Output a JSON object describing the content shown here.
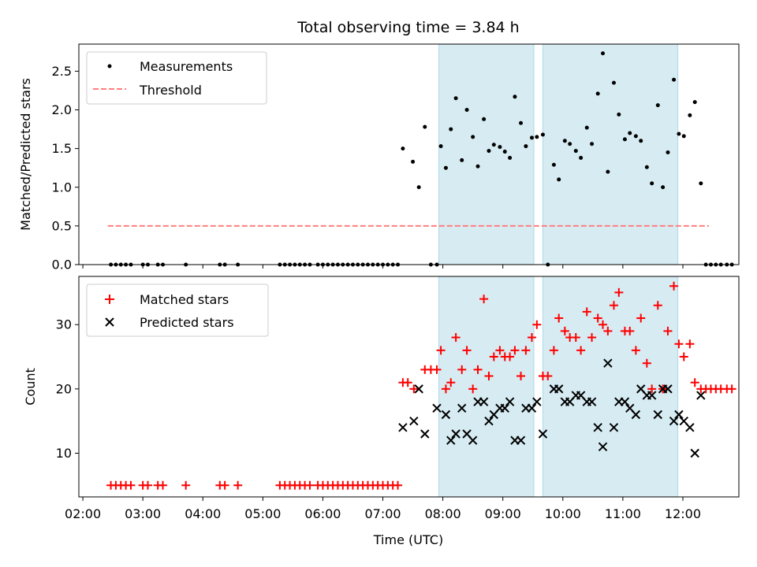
{
  "figure": {
    "title": "Total observing time = 3.84 h"
  },
  "colors": {
    "span": "#add8e6",
    "threshold": "#ff7f7f",
    "measurement": "#000000",
    "matched": "#ff0000",
    "predicted": "#000000"
  },
  "chart_data": [
    {
      "type": "scatter",
      "title": "Total observing time = 3.84 h",
      "xlabel": "",
      "ylabel": "Matched/Predicted stars",
      "xlim": [
        "01:56",
        "12:56"
      ],
      "ylim": [
        0,
        2.85
      ],
      "yticks": [
        0.0,
        0.5,
        1.0,
        1.5,
        2.0,
        2.5
      ],
      "ytick_labels": [
        "0.0",
        "0.5",
        "1.0",
        "1.5",
        "2.0",
        "2.5"
      ],
      "xticks": [
        "02:00",
        "03:00",
        "04:00",
        "05:00",
        "06:00",
        "07:00",
        "08:00",
        "09:00",
        "10:00",
        "11:00",
        "12:00"
      ],
      "legend_position": "upper left",
      "legend": [
        "Measurements",
        "Threshold"
      ],
      "shaded_spans": [
        [
          "07:56",
          "09:31"
        ],
        [
          "09:40",
          "11:55"
        ]
      ],
      "series": [
        {
          "name": "Measurements",
          "marker": "dot",
          "points": [
            [
              "02:28",
              0
            ],
            [
              "02:33",
              0
            ],
            [
              "02:38",
              0
            ],
            [
              "02:43",
              0
            ],
            [
              "02:48",
              0
            ],
            [
              "03:00",
              0
            ],
            [
              "03:05",
              0
            ],
            [
              "03:15",
              0
            ],
            [
              "03:20",
              0
            ],
            [
              "03:43",
              0
            ],
            [
              "04:17",
              0
            ],
            [
              "04:22",
              0
            ],
            [
              "04:35",
              0
            ],
            [
              "05:17",
              0
            ],
            [
              "05:22",
              0
            ],
            [
              "05:27",
              0
            ],
            [
              "05:32",
              0
            ],
            [
              "05:37",
              0
            ],
            [
              "05:42",
              0
            ],
            [
              "05:47",
              0
            ],
            [
              "05:55",
              0
            ],
            [
              "06:00",
              0
            ],
            [
              "06:05",
              0
            ],
            [
              "06:10",
              0
            ],
            [
              "06:15",
              0
            ],
            [
              "06:20",
              0
            ],
            [
              "06:25",
              0
            ],
            [
              "06:30",
              0
            ],
            [
              "06:35",
              0
            ],
            [
              "06:40",
              0
            ],
            [
              "06:45",
              0
            ],
            [
              "06:50",
              0
            ],
            [
              "06:55",
              0
            ],
            [
              "07:00",
              0
            ],
            [
              "07:05",
              0
            ],
            [
              "07:10",
              0
            ],
            [
              "07:15",
              0
            ],
            [
              "07:20",
              1.5
            ],
            [
              "07:30",
              1.33
            ],
            [
              "07:36",
              1.0
            ],
            [
              "07:42",
              1.78
            ],
            [
              "07:48",
              0
            ],
            [
              "07:54",
              0
            ],
            [
              "07:58",
              1.53
            ],
            [
              "08:03",
              1.25
            ],
            [
              "08:08",
              1.75
            ],
            [
              "08:13",
              2.15
            ],
            [
              "08:19",
              1.35
            ],
            [
              "08:24",
              2.0
            ],
            [
              "08:30",
              1.65
            ],
            [
              "08:35",
              1.27
            ],
            [
              "08:41",
              1.88
            ],
            [
              "08:46",
              1.47
            ],
            [
              "08:51",
              1.55
            ],
            [
              "08:57",
              1.52
            ],
            [
              "09:02",
              1.46
            ],
            [
              "09:07",
              1.38
            ],
            [
              "09:12",
              2.17
            ],
            [
              "09:18",
              1.83
            ],
            [
              "09:23",
              1.53
            ],
            [
              "09:29",
              1.64
            ],
            [
              "09:34",
              1.65
            ],
            [
              "09:40",
              1.68
            ],
            [
              "09:45",
              0
            ],
            [
              "09:51",
              1.29
            ],
            [
              "09:56",
              1.1
            ],
            [
              "10:02",
              1.6
            ],
            [
              "10:07",
              1.56
            ],
            [
              "10:13",
              1.47
            ],
            [
              "10:18",
              1.38
            ],
            [
              "10:24",
              1.77
            ],
            [
              "10:29",
              1.56
            ],
            [
              "10:35",
              2.21
            ],
            [
              "10:40",
              2.73
            ],
            [
              "10:45",
              1.2
            ],
            [
              "10:51",
              2.35
            ],
            [
              "10:56",
              1.94
            ],
            [
              "11:02",
              1.62
            ],
            [
              "11:07",
              1.7
            ],
            [
              "11:13",
              1.66
            ],
            [
              "11:18",
              1.6
            ],
            [
              "11:24",
              1.26
            ],
            [
              "11:29",
              1.05
            ],
            [
              "11:35",
              2.06
            ],
            [
              "11:40",
              1.0
            ],
            [
              "11:45",
              1.45
            ],
            [
              "11:51",
              2.39
            ],
            [
              "11:56",
              1.69
            ],
            [
              "12:01",
              1.66
            ],
            [
              "12:07",
              1.93
            ],
            [
              "12:12",
              2.1
            ],
            [
              "12:18",
              1.05
            ],
            [
              "12:23",
              0
            ],
            [
              "12:28",
              0
            ],
            [
              "12:33",
              0
            ],
            [
              "12:38",
              0
            ],
            [
              "12:44",
              0
            ],
            [
              "12:49",
              0
            ]
          ]
        },
        {
          "name": "Threshold",
          "style": "dashed",
          "y": 0.5,
          "x_range": [
            "02:25",
            "12:26"
          ]
        }
      ]
    },
    {
      "type": "scatter",
      "xlabel": "Time (UTC)",
      "ylabel": "Count",
      "xlim": [
        "01:56",
        "12:56"
      ],
      "ylim": [
        3.2,
        37.5
      ],
      "yticks": [
        10,
        20,
        30
      ],
      "ytick_labels": [
        "10",
        "20",
        "30"
      ],
      "xticks": [
        "02:00",
        "03:00",
        "04:00",
        "05:00",
        "06:00",
        "07:00",
        "08:00",
        "09:00",
        "10:00",
        "11:00",
        "12:00"
      ],
      "xtick_labels": [
        "02:00",
        "03:00",
        "04:00",
        "05:00",
        "06:00",
        "07:00",
        "08:00",
        "09:00",
        "10:00",
        "11:00",
        "12:00"
      ],
      "legend_position": "upper left",
      "legend": [
        "Matched stars",
        "Predicted stars"
      ],
      "shaded_spans": [
        [
          "07:56",
          "09:31"
        ],
        [
          "09:40",
          "11:55"
        ]
      ],
      "series": [
        {
          "name": "Matched stars",
          "marker": "plus",
          "points": [
            [
              "02:28",
              5
            ],
            [
              "02:33",
              5
            ],
            [
              "02:38",
              5
            ],
            [
              "02:43",
              5
            ],
            [
              "02:48",
              5
            ],
            [
              "03:00",
              5
            ],
            [
              "03:05",
              5
            ],
            [
              "03:15",
              5
            ],
            [
              "03:20",
              5
            ],
            [
              "03:43",
              5
            ],
            [
              "04:17",
              5
            ],
            [
              "04:22",
              5
            ],
            [
              "04:35",
              5
            ],
            [
              "05:17",
              5
            ],
            [
              "05:22",
              5
            ],
            [
              "05:27",
              5
            ],
            [
              "05:32",
              5
            ],
            [
              "05:37",
              5
            ],
            [
              "05:42",
              5
            ],
            [
              "05:47",
              5
            ],
            [
              "05:55",
              5
            ],
            [
              "06:00",
              5
            ],
            [
              "06:05",
              5
            ],
            [
              "06:10",
              5
            ],
            [
              "06:15",
              5
            ],
            [
              "06:20",
              5
            ],
            [
              "06:25",
              5
            ],
            [
              "06:30",
              5
            ],
            [
              "06:35",
              5
            ],
            [
              "06:40",
              5
            ],
            [
              "06:45",
              5
            ],
            [
              "06:50",
              5
            ],
            [
              "06:55",
              5
            ],
            [
              "07:00",
              5
            ],
            [
              "07:05",
              5
            ],
            [
              "07:10",
              5
            ],
            [
              "07:15",
              5
            ],
            [
              "07:20",
              21
            ],
            [
              "07:25",
              21
            ],
            [
              "07:31",
              20
            ],
            [
              "07:42",
              23
            ],
            [
              "07:48",
              23
            ],
            [
              "07:54",
              23
            ],
            [
              "07:58",
              26
            ],
            [
              "08:03",
              20
            ],
            [
              "08:08",
              21
            ],
            [
              "08:13",
              28
            ],
            [
              "08:19",
              23
            ],
            [
              "08:24",
              26
            ],
            [
              "08:30",
              20
            ],
            [
              "08:35",
              23
            ],
            [
              "08:41",
              34
            ],
            [
              "08:46",
              22
            ],
            [
              "08:51",
              25
            ],
            [
              "08:57",
              26
            ],
            [
              "09:02",
              25
            ],
            [
              "09:07",
              25
            ],
            [
              "09:12",
              26
            ],
            [
              "09:18",
              22
            ],
            [
              "09:23",
              26
            ],
            [
              "09:29",
              28
            ],
            [
              "09:34",
              30
            ],
            [
              "09:40",
              22
            ],
            [
              "09:45",
              22
            ],
            [
              "09:51",
              26
            ],
            [
              "09:56",
              31
            ],
            [
              "10:02",
              29
            ],
            [
              "10:07",
              28
            ],
            [
              "10:13",
              28
            ],
            [
              "10:18",
              26
            ],
            [
              "10:24",
              32
            ],
            [
              "10:29",
              28
            ],
            [
              "10:35",
              31
            ],
            [
              "10:40",
              30
            ],
            [
              "10:45",
              29
            ],
            [
              "10:51",
              33
            ],
            [
              "10:56",
              35
            ],
            [
              "11:02",
              29
            ],
            [
              "11:07",
              29
            ],
            [
              "11:13",
              26
            ],
            [
              "11:18",
              31
            ],
            [
              "11:24",
              24
            ],
            [
              "11:29",
              20
            ],
            [
              "11:35",
              33
            ],
            [
              "11:40",
              20
            ],
            [
              "11:45",
              29
            ],
            [
              "11:51",
              36
            ],
            [
              "11:56",
              27
            ],
            [
              "12:01",
              25
            ],
            [
              "12:07",
              27
            ],
            [
              "12:12",
              21
            ],
            [
              "12:18",
              20
            ],
            [
              "12:23",
              20
            ],
            [
              "12:28",
              20
            ],
            [
              "12:33",
              20
            ],
            [
              "12:38",
              20
            ],
            [
              "12:44",
              20
            ],
            [
              "12:49",
              20
            ]
          ]
        },
        {
          "name": "Predicted stars",
          "marker": "x",
          "points": [
            [
              "07:20",
              14
            ],
            [
              "07:31",
              15
            ],
            [
              "07:36",
              20
            ],
            [
              "07:42",
              13
            ],
            [
              "07:54",
              17
            ],
            [
              "08:03",
              16
            ],
            [
              "08:08",
              12
            ],
            [
              "08:13",
              13
            ],
            [
              "08:19",
              17
            ],
            [
              "08:24",
              13
            ],
            [
              "08:30",
              12
            ],
            [
              "08:35",
              18
            ],
            [
              "08:41",
              18
            ],
            [
              "08:46",
              15
            ],
            [
              "08:51",
              16
            ],
            [
              "08:57",
              17
            ],
            [
              "09:02",
              17
            ],
            [
              "09:07",
              18
            ],
            [
              "09:12",
              12
            ],
            [
              "09:18",
              12
            ],
            [
              "09:23",
              17
            ],
            [
              "09:29",
              17
            ],
            [
              "09:34",
              18
            ],
            [
              "09:40",
              13
            ],
            [
              "09:51",
              20
            ],
            [
              "09:56",
              20
            ],
            [
              "10:02",
              18
            ],
            [
              "10:07",
              18
            ],
            [
              "10:13",
              19
            ],
            [
              "10:18",
              19
            ],
            [
              "10:24",
              18
            ],
            [
              "10:29",
              18
            ],
            [
              "10:35",
              14
            ],
            [
              "10:40",
              11
            ],
            [
              "10:45",
              24
            ],
            [
              "10:51",
              14
            ],
            [
              "10:56",
              18
            ],
            [
              "11:02",
              18
            ],
            [
              "11:07",
              17
            ],
            [
              "11:13",
              16
            ],
            [
              "11:18",
              20
            ],
            [
              "11:24",
              19
            ],
            [
              "11:29",
              19
            ],
            [
              "11:35",
              16
            ],
            [
              "11:40",
              20
            ],
            [
              "11:45",
              20
            ],
            [
              "11:51",
              15
            ],
            [
              "11:56",
              16
            ],
            [
              "12:01",
              15
            ],
            [
              "12:07",
              14
            ],
            [
              "12:12",
              10
            ],
            [
              "12:18",
              19
            ]
          ]
        }
      ]
    }
  ]
}
